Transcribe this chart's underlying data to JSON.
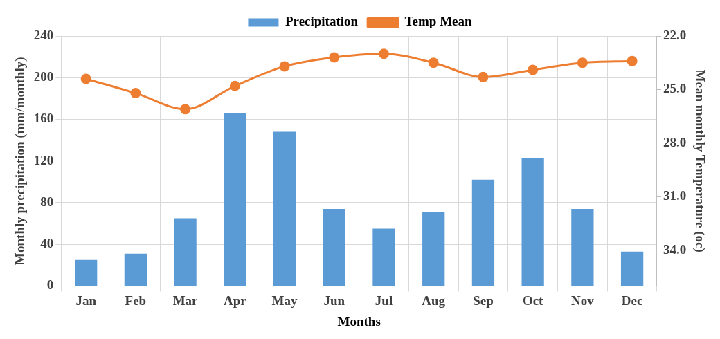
{
  "chart_data": {
    "type": "bar",
    "xlabel": "Months",
    "ylabel": "Monthly precipitation (mm/monthly)",
    "y2label": "Mean monthly Temperature (oc)",
    "categories": [
      "Jan",
      "Feb",
      "Mar",
      "Apr",
      "May",
      "Jun",
      "Jul",
      "Aug",
      "Sep",
      "Oct",
      "Nov",
      "Dec"
    ],
    "series": [
      {
        "name": "Precipitation",
        "color": "#5b9bd5",
        "values": [
          25,
          31,
          65,
          166,
          148,
          74,
          55,
          71,
          102,
          123,
          74,
          33
        ]
      },
      {
        "name": "Temp Mean",
        "type": "line",
        "axis": "y2",
        "color": "#ed7d31",
        "marker": "circle",
        "values": [
          24.4,
          25.2,
          26.1,
          24.8,
          23.7,
          23.2,
          23.0,
          23.5,
          24.3,
          23.9,
          23.5,
          23.4
        ]
      }
    ],
    "ylim": [
      0,
      240
    ],
    "yticks": [
      0,
      40,
      80,
      120,
      160,
      200,
      240
    ],
    "y2lim": [
      36,
      22
    ],
    "y2ticks": [
      {
        "value": 22,
        "label": "22.0"
      },
      {
        "value": 25,
        "label": "25.0"
      },
      {
        "value": 28,
        "label": "28.0"
      },
      {
        "value": 31,
        "label": "31.0"
      },
      {
        "value": 34,
        "label": "34.0"
      }
    ],
    "grid": true,
    "legend": "top"
  }
}
